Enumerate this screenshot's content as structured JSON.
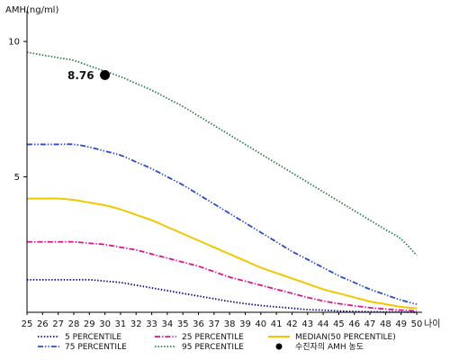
{
  "chart_data": {
    "type": "line",
    "ylabel": "AMH(ng/ml)",
    "xlabel": "나이",
    "x": [
      25,
      26,
      27,
      28,
      29,
      30,
      31,
      32,
      33,
      34,
      35,
      36,
      37,
      38,
      39,
      40,
      41,
      42,
      43,
      44,
      45,
      46,
      47,
      48,
      49,
      50
    ],
    "xlim": [
      25,
      50
    ],
    "ylim": [
      0,
      10.8
    ],
    "y_ticks": [
      5,
      10
    ],
    "grid": false,
    "legend_position": "bottom",
    "series": [
      {
        "name": "5 PERCENTILE",
        "color": "#000080",
        "dash": "dotted",
        "values": [
          1.2,
          1.2,
          1.2,
          1.2,
          1.2,
          1.15,
          1.1,
          1.0,
          0.9,
          0.8,
          0.7,
          0.6,
          0.5,
          0.4,
          0.32,
          0.25,
          0.2,
          0.15,
          0.1,
          0.08,
          0.05,
          0.03,
          0.02,
          0.01,
          0.01,
          0.0
        ]
      },
      {
        "name": "25 PERCENTILE",
        "color": "#e0138c",
        "dash": "dashdot",
        "values": [
          2.6,
          2.6,
          2.6,
          2.6,
          2.55,
          2.5,
          2.4,
          2.3,
          2.15,
          2.0,
          1.85,
          1.7,
          1.5,
          1.3,
          1.15,
          1.0,
          0.85,
          0.7,
          0.55,
          0.42,
          0.32,
          0.24,
          0.17,
          0.12,
          0.08,
          0.05
        ]
      },
      {
        "name": "MEDIAN(50 PERCENTILE)",
        "color": "#f0c800",
        "dash": "solid",
        "values": [
          4.2,
          4.2,
          4.2,
          4.15,
          4.05,
          3.95,
          3.8,
          3.6,
          3.4,
          3.15,
          2.9,
          2.65,
          2.4,
          2.15,
          1.9,
          1.65,
          1.45,
          1.25,
          1.05,
          0.85,
          0.7,
          0.55,
          0.4,
          0.3,
          0.2,
          0.15
        ]
      },
      {
        "name": "75 PERCENTILE",
        "color": "#2a4bcf",
        "dash": "dashdotdot",
        "values": [
          6.2,
          6.2,
          6.2,
          6.2,
          6.1,
          5.95,
          5.8,
          5.55,
          5.3,
          5.0,
          4.7,
          4.35,
          4.0,
          3.65,
          3.3,
          2.95,
          2.6,
          2.25,
          1.95,
          1.65,
          1.35,
          1.1,
          0.85,
          0.65,
          0.45,
          0.3
        ]
      },
      {
        "name": "95 PERCENTILE",
        "color": "#1f7a3a",
        "dash": "dotted",
        "values": [
          9.6,
          9.5,
          9.4,
          9.3,
          9.1,
          8.9,
          8.7,
          8.45,
          8.2,
          7.9,
          7.6,
          7.25,
          6.9,
          6.55,
          6.2,
          5.85,
          5.5,
          5.15,
          4.8,
          4.45,
          4.1,
          3.75,
          3.4,
          3.05,
          2.7,
          2.1
        ]
      }
    ],
    "highlight": {
      "name": "수진자의 AMH 농도",
      "x": 30,
      "y": 8.76,
      "label": "8.76",
      "color": "#000000"
    }
  }
}
